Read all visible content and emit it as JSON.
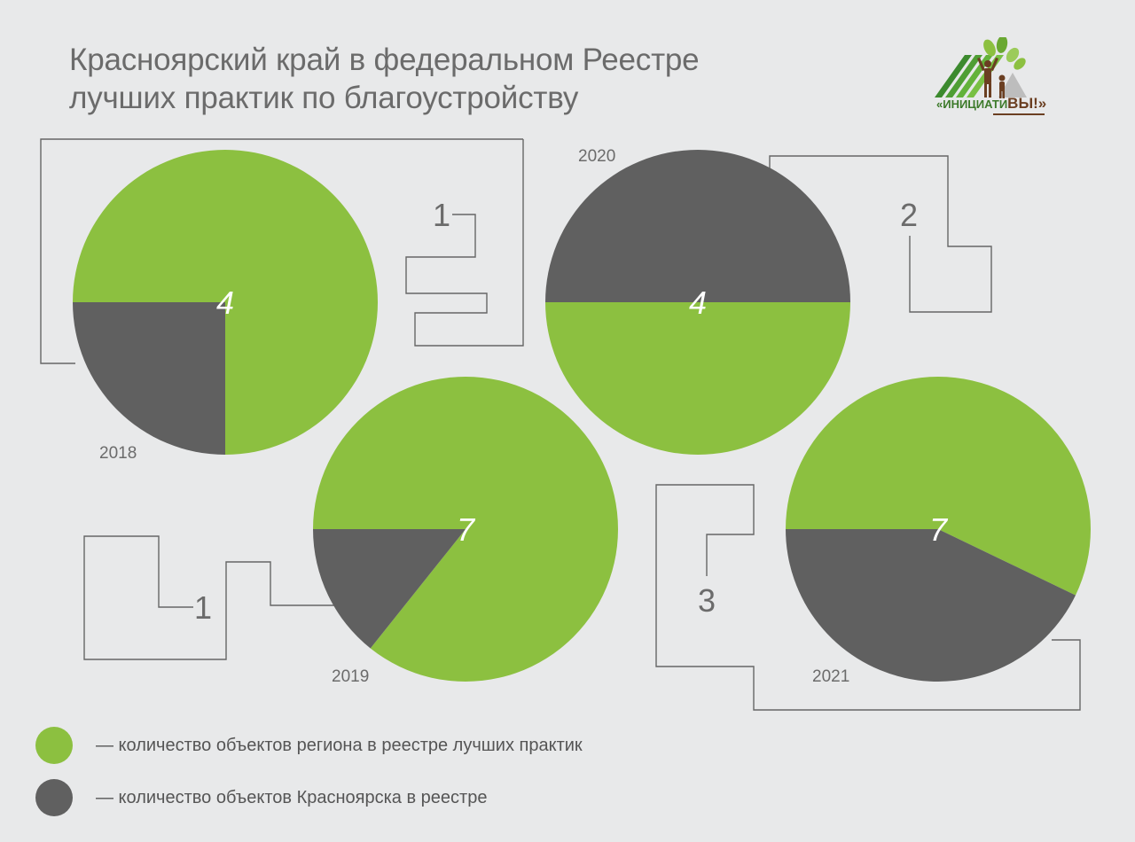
{
  "title": {
    "line1": "Красноярский край в федеральном Реестре",
    "line2": "лучших практик по благоустройству"
  },
  "logo": {
    "text_main": "«ИНИЦИАТИ",
    "text_accent": "ВЫ!»"
  },
  "colors": {
    "region": "#8cc040",
    "city": "#606060",
    "line": "#666666",
    "text": "#6b6b6b"
  },
  "legend": [
    {
      "key": "region",
      "label": "— количество объектов региона в реестре лучших практик"
    },
    {
      "key": "city",
      "label": "— количество объектов Красноярска в реестре"
    }
  ],
  "chart_data": [
    {
      "type": "pie",
      "year": "2018",
      "total_label": "4",
      "region_total": 4,
      "city": 1,
      "city_label": "1"
    },
    {
      "type": "pie",
      "year": "2019",
      "total_label": "7",
      "region_total": 7,
      "city": 1,
      "city_label": "1"
    },
    {
      "type": "pie",
      "year": "2020",
      "total_label": "4",
      "region_total": 4,
      "city": 2,
      "city_label": "2"
    },
    {
      "type": "pie",
      "year": "2021",
      "total_label": "7",
      "region_total": 7,
      "city": 3,
      "city_label": "3"
    }
  ]
}
